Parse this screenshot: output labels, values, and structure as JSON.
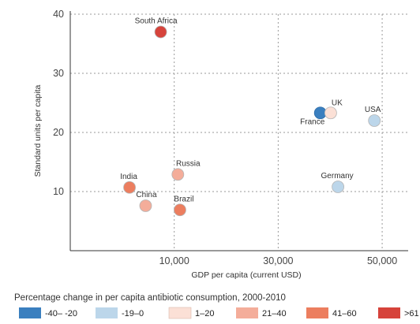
{
  "chart_data": {
    "type": "scatter",
    "title": "",
    "xlabel": "GDP per capita (current USD)",
    "ylabel": "Standard units per capita",
    "xlim": [
      -10000,
      55000
    ],
    "ylim": [
      0,
      40
    ],
    "x_ticks": [
      {
        "value": 10000,
        "label": "10,000"
      },
      {
        "value": 30000,
        "label": "30,000"
      },
      {
        "value": 50000,
        "label": "50,000"
      }
    ],
    "y_ticks": [
      {
        "value": 10,
        "label": "10"
      },
      {
        "value": 20,
        "label": "20"
      },
      {
        "value": 30,
        "label": "30"
      },
      {
        "value": 40,
        "label": "40"
      }
    ],
    "grid": true,
    "points": [
      {
        "label": "South Africa",
        "x": 7400,
        "y": 37,
        "category": ">61"
      },
      {
        "label": "India",
        "x": 1400,
        "y": 10.7,
        "category": "41–60"
      },
      {
        "label": "China",
        "x": 4500,
        "y": 7.6,
        "category": "21–40"
      },
      {
        "label": "Russia",
        "x": 10700,
        "y": 12.9,
        "category": "21–40"
      },
      {
        "label": "Brazil",
        "x": 11100,
        "y": 6.9,
        "category": "41–60"
      },
      {
        "label": "France",
        "x": 38100,
        "y": 23.3,
        "category": "-40– -20"
      },
      {
        "label": "UK",
        "x": 40100,
        "y": 23.3,
        "category": "1–20"
      },
      {
        "label": "USA",
        "x": 48500,
        "y": 22,
        "category": "-19–0"
      },
      {
        "label": "Germany",
        "x": 41500,
        "y": 10.8,
        "category": "-19–0"
      }
    ],
    "legend": {
      "title": "Percentage change in per capita antibiotic consumption, 2000-2010",
      "placement": "bottom",
      "items": [
        {
          "label": "-40– -20",
          "color": "#3a7fbf"
        },
        {
          "label": "-19–0",
          "color": "#bcd6ea"
        },
        {
          "label": "1–20",
          "color": "#fbe0d6"
        },
        {
          "label": "21–40",
          "color": "#f4ad9a"
        },
        {
          "label": "41–60",
          "color": "#ec7e5f"
        },
        {
          "label": ">61",
          "color": "#d6433b"
        }
      ]
    }
  }
}
